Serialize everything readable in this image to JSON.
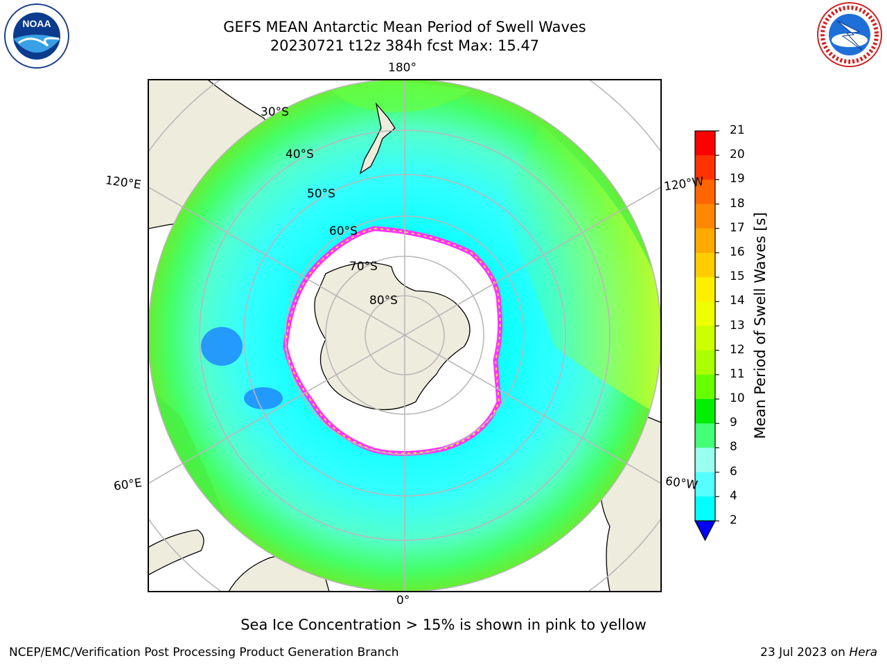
{
  "header": {
    "title_line1": "GEFS MEAN Antarctic Mean Period of Swell Waves",
    "title_line2": "20230721 t12z 384h fcst   Max: 15.47"
  },
  "logos": {
    "left": {
      "name": "NOAA",
      "icon": "noaa-logo"
    },
    "right": {
      "name": "NATIONAL WEATHER SERVICE",
      "icon": "nws-logo"
    }
  },
  "map": {
    "projection": "south-polar-stereographic",
    "longitude_labels": {
      "top": "180°",
      "upper_left": "120°E",
      "upper_right": "120°W",
      "lower_left": "60°E",
      "lower_right": "60°W",
      "bottom": "0°"
    },
    "latitude_labels": [
      "30°S",
      "40°S",
      "50°S",
      "60°S",
      "70°S",
      "80°S"
    ],
    "colors": {
      "land": "#eeecdc",
      "ocean_low": "#00ffff",
      "ocean_mid": "#99ffee",
      "ocean_high": "#3cff3c",
      "sea_ice_edge": "#ff33ff",
      "grid": "#b8b8b8"
    }
  },
  "colorbar": {
    "label": "Mean Period of Swell Waves [s]",
    "ticks": [
      "21",
      "20",
      "19",
      "18",
      "17",
      "16",
      "15",
      "14",
      "13",
      "12",
      "11",
      "10",
      "9",
      "8",
      "6",
      "4",
      "2"
    ],
    "colors": [
      "#ff0000",
      "#ff3300",
      "#ff6600",
      "#ff8800",
      "#ffaa00",
      "#ffcc00",
      "#ffee00",
      "#eeff00",
      "#ccff00",
      "#aaff00",
      "#66ff00",
      "#00ee00",
      "#44ff77",
      "#99ffee",
      "#55ffff",
      "#00ffff",
      "#0088ff",
      "#0000ff"
    ]
  },
  "footer": {
    "note": "Sea Ice Concentration > 15% is shown in pink to yellow",
    "credit": "NCEP/EMC/Verification Post Processing Product Generation Branch",
    "date": "23 Jul 2023 on",
    "host": "Hera"
  }
}
